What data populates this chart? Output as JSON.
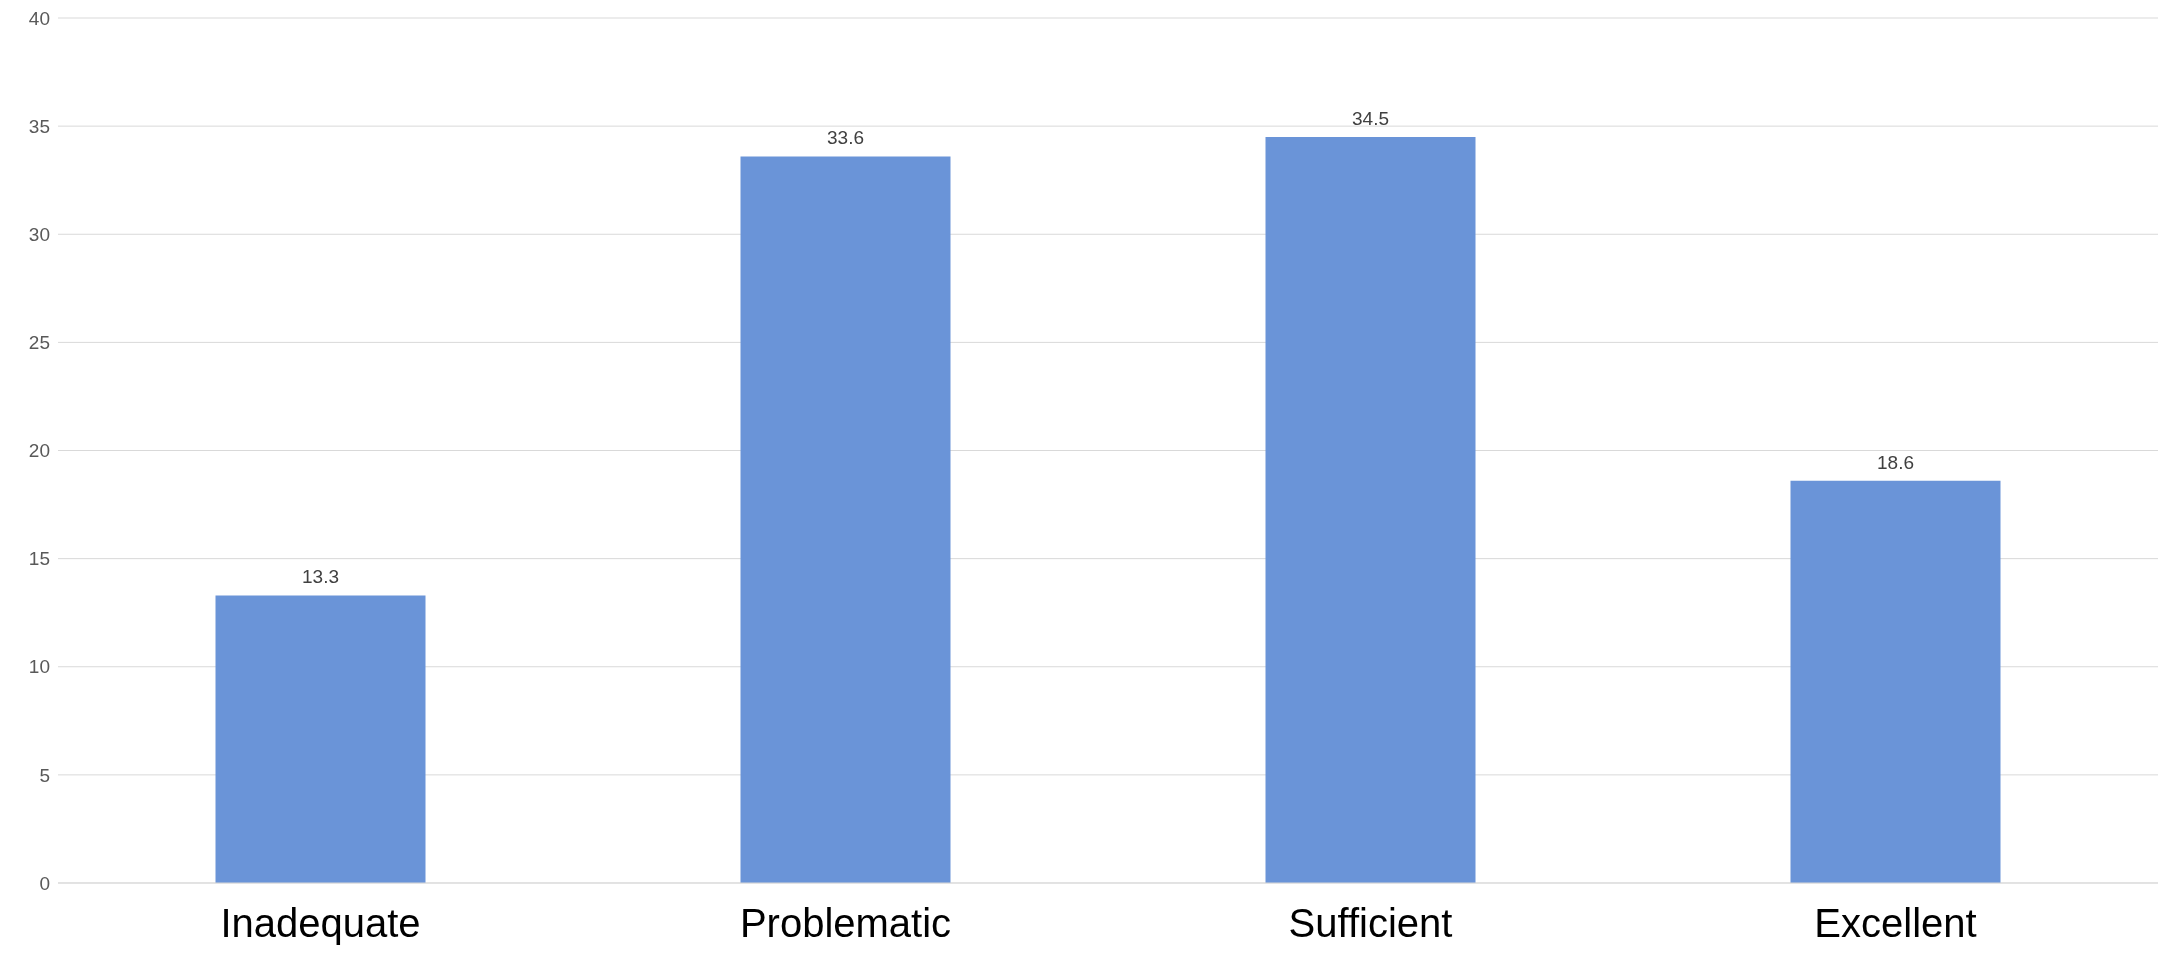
{
  "chart_data": {
    "type": "bar",
    "categories": [
      "Inadequate",
      "Problematic",
      "Sufficient",
      "Excellent"
    ],
    "values": [
      13.3,
      33.6,
      34.5,
      18.6
    ],
    "color": "#6a94d8",
    "ylim": [
      0,
      40
    ],
    "yticks": [
      0,
      5,
      10,
      15,
      20,
      25,
      30,
      35,
      40
    ],
    "grid": "y",
    "data_labels": true
  }
}
